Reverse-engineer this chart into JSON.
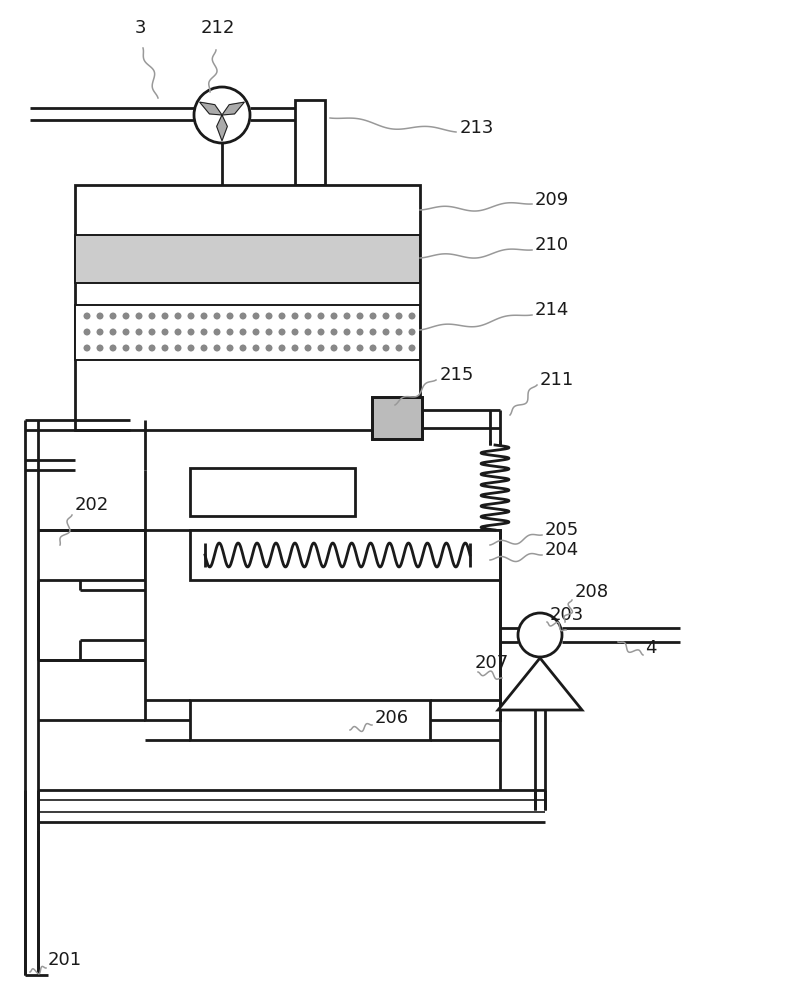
{
  "bg_color": "#ffffff",
  "lc": "#1a1a1a",
  "gray": "#999999",
  "lw_main": 2.0,
  "lw_thin": 1.2,
  "lw_leader": 1.1,
  "fontsize": 13
}
